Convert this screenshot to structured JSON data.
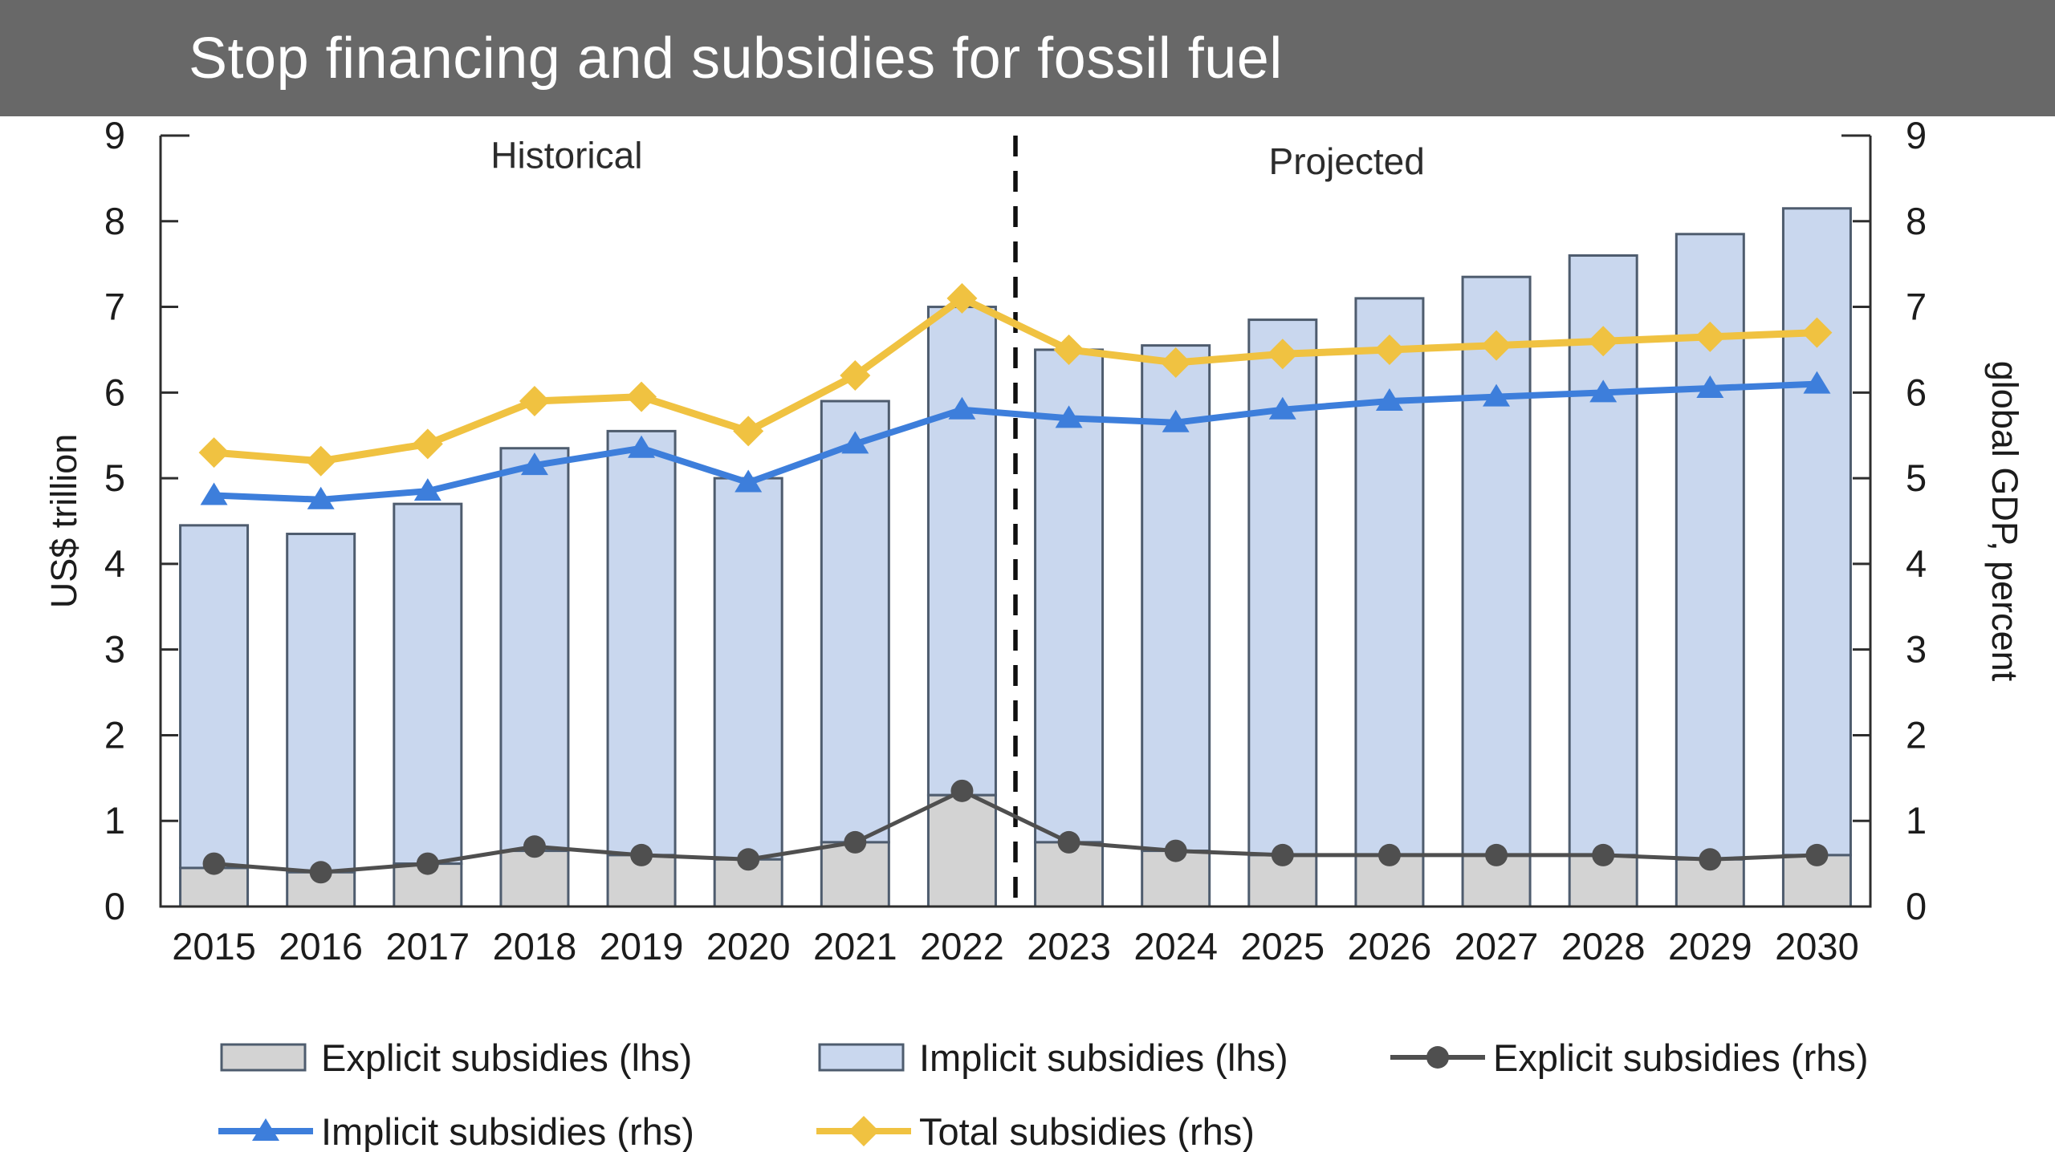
{
  "header": {
    "title": "Stop financing and subsidies for fossil fuel",
    "bg_color": "#686868",
    "text_color": "#ffffff"
  },
  "chart_data": {
    "type": "bar",
    "subtype": "stacked bars (left axis) with three overlay marker lines (right axis), dual y-axis, historical/projected divider",
    "title": "",
    "ylabel_left": "US$ trillion",
    "ylabel_right": "global GDP, percent",
    "ylim_left": [
      0,
      9
    ],
    "ylim_right": [
      0,
      9
    ],
    "yticks": [
      0,
      1,
      2,
      3,
      4,
      5,
      6,
      7,
      8,
      9
    ],
    "categories": [
      "2015",
      "2016",
      "2017",
      "2018",
      "2019",
      "2020",
      "2021",
      "2022",
      "2023",
      "2024",
      "2025",
      "2026",
      "2027",
      "2028",
      "2029",
      "2030"
    ],
    "annotations": [
      {
        "text": "Historical",
        "center_index": 3.3,
        "y_value": 8.62
      },
      {
        "text": "Projected",
        "center_index": 10.6,
        "y_value": 8.55
      }
    ],
    "divider_index": 8,
    "bar_series": [
      {
        "name": "Explicit subsidies (lhs)",
        "axis": "left",
        "color": "#d3d3d3",
        "values": [
          0.45,
          0.4,
          0.5,
          0.65,
          0.6,
          0.55,
          0.75,
          1.3,
          0.75,
          0.65,
          0.6,
          0.6,
          0.6,
          0.6,
          0.55,
          0.6
        ]
      },
      {
        "name": "Implicit subsidies (lhs)",
        "axis": "left",
        "color": "#c9d7ee",
        "values": [
          4.0,
          3.95,
          4.2,
          4.7,
          4.95,
          4.45,
          5.15,
          5.7,
          5.75,
          5.9,
          6.25,
          6.5,
          6.75,
          7.0,
          7.3,
          7.55
        ]
      }
    ],
    "line_series": [
      {
        "name": "Explicit subsidies (rhs)",
        "axis": "right",
        "marker": "circle",
        "color": "#4f4f4f",
        "width": 5,
        "values": [
          0.5,
          0.4,
          0.5,
          0.7,
          0.6,
          0.55,
          0.75,
          1.35,
          0.75,
          0.65,
          0.6,
          0.6,
          0.6,
          0.6,
          0.55,
          0.6
        ]
      },
      {
        "name": "Implicit subsidies (rhs)",
        "axis": "right",
        "marker": "triangle",
        "color": "#3d7edb",
        "width": 8,
        "values": [
          4.8,
          4.75,
          4.85,
          5.15,
          5.35,
          4.95,
          5.4,
          5.8,
          5.7,
          5.65,
          5.8,
          5.9,
          5.95,
          6.0,
          6.05,
          6.1
        ]
      },
      {
        "name": "Total subsidies (rhs)",
        "axis": "right",
        "marker": "diamond",
        "color": "#f0c241",
        "width": 9,
        "values": [
          5.3,
          5.2,
          5.4,
          5.9,
          5.95,
          5.55,
          6.2,
          7.1,
          6.5,
          6.35,
          6.45,
          6.5,
          6.55,
          6.6,
          6.65,
          6.7
        ]
      }
    ],
    "legend": [
      {
        "label": "Explicit subsidies (lhs)",
        "swatch": "bar",
        "color": "#d3d3d3"
      },
      {
        "label": "Implicit subsidies (lhs)",
        "swatch": "bar",
        "color": "#c9d7ee"
      },
      {
        "label": "Explicit subsidies (rhs)",
        "swatch": "line",
        "marker": "circle",
        "color": "#4f4f4f"
      },
      {
        "label": "Implicit subsidies (rhs)",
        "swatch": "line",
        "marker": "triangle",
        "color": "#3d7edb"
      },
      {
        "label": "Total subsidies (rhs)",
        "swatch": "line",
        "marker": "diamond",
        "color": "#f0c241"
      }
    ],
    "colors": {
      "axis": "#2e2e2e",
      "bar_stroke": "#4e5c6e",
      "divider": "#0f0f0f",
      "text": "#1c1c1c"
    }
  }
}
